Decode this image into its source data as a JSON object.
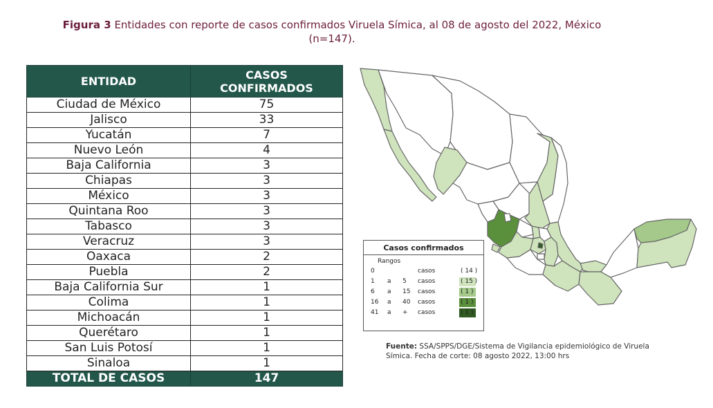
{
  "title": {
    "prefix": "Figura 3",
    "line1": "Entidades con reporte de casos confirmados Viruela Símica, al 08 de agosto del 2022, México",
    "line2": "(n=147)."
  },
  "table": {
    "headers": [
      "ENTIDAD",
      "CASOS CONFIRMADOS"
    ],
    "rows": [
      {
        "entidad": "Ciudad de México",
        "casos": "75"
      },
      {
        "entidad": "Jalisco",
        "casos": "33"
      },
      {
        "entidad": "Yucatán",
        "casos": "7"
      },
      {
        "entidad": "Nuevo León",
        "casos": "4"
      },
      {
        "entidad": "Baja California",
        "casos": "3"
      },
      {
        "entidad": "Chiapas",
        "casos": "3"
      },
      {
        "entidad": "México",
        "casos": "3"
      },
      {
        "entidad": "Quintana Roo",
        "casos": "3"
      },
      {
        "entidad": "Tabasco",
        "casos": "3"
      },
      {
        "entidad": "Veracruz",
        "casos": "3"
      },
      {
        "entidad": "Oaxaca",
        "casos": "2"
      },
      {
        "entidad": "Puebla",
        "casos": "2"
      },
      {
        "entidad": "Baja California Sur",
        "casos": "1"
      },
      {
        "entidad": "Colima",
        "casos": "1"
      },
      {
        "entidad": "Michoacán",
        "casos": "1"
      },
      {
        "entidad": "Querétaro",
        "casos": "1"
      },
      {
        "entidad": "San Luis Potosí",
        "casos": "1"
      },
      {
        "entidad": "Sinaloa",
        "casos": "1"
      }
    ],
    "total_label": "TOTAL DE CASOS",
    "total_value": "147"
  },
  "legend": {
    "title": "Casos confirmados",
    "subtitle": "Rangos",
    "items": [
      {
        "from": "0",
        "sep": "",
        "to": "",
        "unit": "casos",
        "count": "( 14 )",
        "color": "#ffffff"
      },
      {
        "from": "1",
        "sep": "a",
        "to": "5",
        "unit": "casos",
        "count": "( 15 )",
        "color": "#cfe3bd"
      },
      {
        "from": "6",
        "sep": "a",
        "to": "15",
        "unit": "casos",
        "count": "( 1 )",
        "color": "#a4c98a"
      },
      {
        "from": "16",
        "sep": "a",
        "to": "40",
        "unit": "casos",
        "count": "( 1 )",
        "color": "#5a8f3c"
      },
      {
        "from": "41",
        "sep": "a",
        "to": "+",
        "unit": "casos",
        "count": "( 1 )",
        "color": "#2f5a22"
      }
    ]
  },
  "source": {
    "label": "Fuente:",
    "text": "SSA/SPPS/DGE/Sistema de Vigilancia epidemiológico de Viruela Símica. Fecha de corte: 08 agosto 2022, 13:00 hrs"
  },
  "colors": {
    "header_bg": "#23574a",
    "title_color": "#6b1e3c",
    "map_none": "#ffffff",
    "map_low": "#cfe3bd",
    "map_mid": "#a4c98a",
    "map_high": "#5a8f3c",
    "map_max": "#2f5a22"
  }
}
